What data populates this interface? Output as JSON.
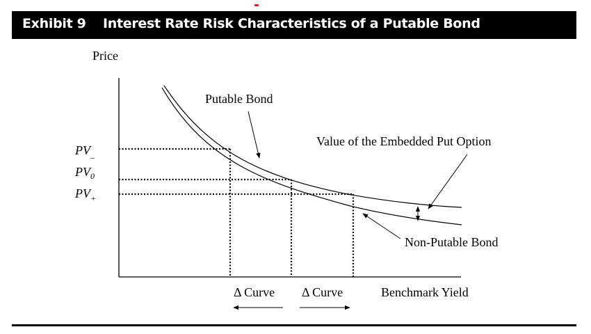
{
  "header": {
    "exhibit_label": "Exhibit 9",
    "title": "Interest Rate Risk Characteristics of a Putable Bond"
  },
  "diagram": {
    "y_axis_label": "Price",
    "x_axis_label": "Benchmark Yield",
    "putable_bond_label": "Putable Bond",
    "non_putable_bond_label": "Non-Putable Bond",
    "embedded_put_label": "Value of the Embedded Put Option",
    "pv_minus": {
      "base": "PV",
      "sub": "_"
    },
    "pv_zero": {
      "base": "PV",
      "sub": "0"
    },
    "pv_plus": {
      "base": "PV",
      "sub": "+"
    },
    "delta_curve_left": "Δ Curve",
    "delta_curve_right": "Δ Curve"
  },
  "colors": {
    "header_background": "#000000",
    "header_text": "#ffffff",
    "accent_mark": "#e02020",
    "line": "#000000"
  }
}
